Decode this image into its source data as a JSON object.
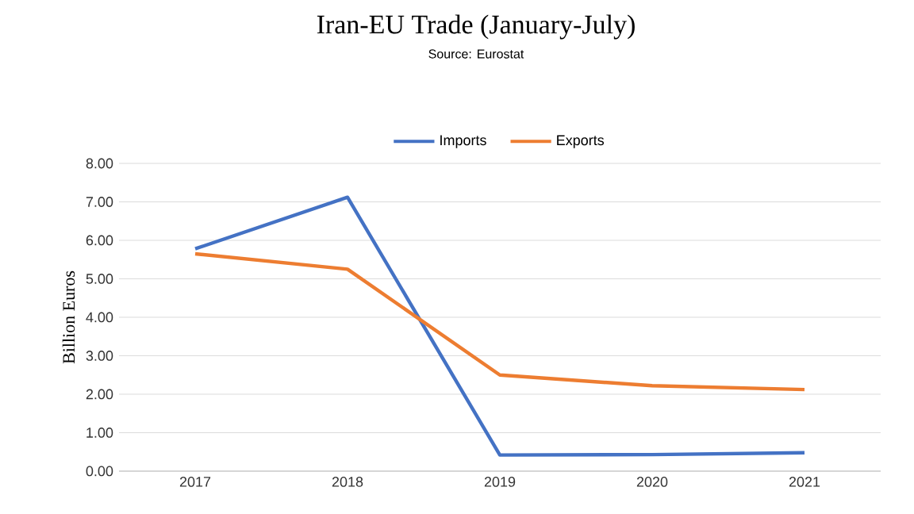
{
  "chart_data": {
    "type": "line",
    "title": "Iran-EU Trade (January-July)",
    "subtitle": "Source: Eurostat",
    "ylabel": "Billion Euros",
    "categories": [
      "2017",
      "2018",
      "2019",
      "2020",
      "2021"
    ],
    "series": [
      {
        "name": "Imports",
        "color": "#4472c4",
        "values": [
          5.78,
          7.12,
          0.42,
          0.43,
          0.48
        ]
      },
      {
        "name": "Exports",
        "color": "#ed7d31",
        "values": [
          5.65,
          5.25,
          2.5,
          2.22,
          2.12
        ]
      }
    ],
    "ylim": [
      0,
      8
    ],
    "yticks": [
      {
        "value": 0,
        "label": "0.00"
      },
      {
        "value": 1,
        "label": "1.00"
      },
      {
        "value": 2,
        "label": "2.00"
      },
      {
        "value": 3,
        "label": "3.00"
      },
      {
        "value": 4,
        "label": "4.00"
      },
      {
        "value": 5,
        "label": "5.00"
      },
      {
        "value": 6,
        "label": "6.00"
      },
      {
        "value": 7,
        "label": "7.00"
      },
      {
        "value": 8,
        "label": "8.00"
      }
    ],
    "grid": "y",
    "legend": "top",
    "marker": "none",
    "line_style": "solid"
  }
}
